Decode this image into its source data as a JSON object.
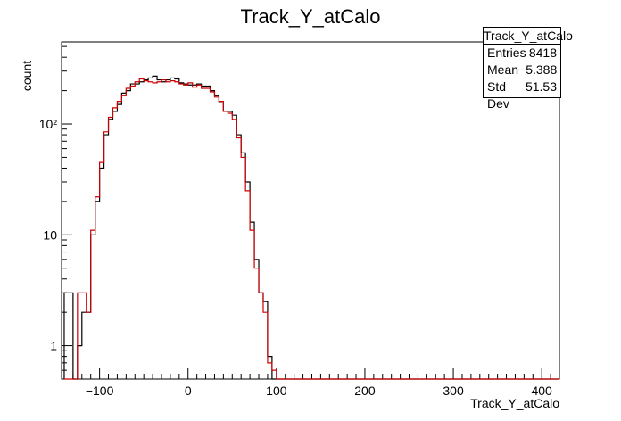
{
  "chart_data": {
    "type": "histogram",
    "title": "Track_Y_atCalo",
    "xlabel": "Track_Y_atCalo",
    "ylabel": "count",
    "log_y": true,
    "xlim": [
      -143,
      420
    ],
    "ylim": [
      0.5,
      550
    ],
    "x_ticks": [
      -100,
      0,
      100,
      200,
      300,
      400
    ],
    "x_tick_labels": [
      "−100",
      "0",
      "100",
      "200",
      "300",
      "400"
    ],
    "y_ticks": [
      1,
      10,
      100
    ],
    "y_tick_labels": [
      "1",
      "10",
      "10²"
    ],
    "bin_start": -140,
    "bin_width": 5,
    "series": [
      {
        "color": "#000000",
        "values": [
          3,
          3,
          0,
          1,
          2,
          2,
          10,
          20,
          40,
          80,
          110,
          130,
          150,
          190,
          200,
          230,
          230,
          240,
          250,
          260,
          270,
          250,
          240,
          250,
          260,
          255,
          235,
          230,
          225,
          225,
          230,
          220,
          220,
          200,
          180,
          155,
          130,
          130,
          120,
          80,
          55,
          30,
          13,
          6,
          3,
          2.5,
          0.8,
          0.5,
          0,
          0,
          0,
          0,
          0,
          0,
          0,
          0,
          0,
          0,
          0,
          0,
          0,
          0,
          0,
          0,
          0,
          0,
          0,
          0,
          0,
          0,
          0,
          0,
          0,
          0,
          0,
          0,
          0,
          0,
          0,
          0,
          0,
          0,
          0,
          0,
          0,
          0,
          0,
          0,
          0,
          0,
          0,
          0,
          0,
          0,
          0,
          0,
          0,
          0,
          0,
          0,
          0,
          0,
          0,
          0,
          0,
          0,
          0,
          0,
          0,
          0,
          0,
          0
        ]
      },
      {
        "color": "#cc0000",
        "values": [
          0,
          0,
          0,
          3,
          3,
          2,
          11,
          22,
          45,
          85,
          115,
          140,
          160,
          180,
          210,
          220,
          240,
          255,
          245,
          240,
          235,
          240,
          250,
          240,
          245,
          240,
          230,
          225,
          235,
          215,
          225,
          210,
          210,
          195,
          175,
          160,
          130,
          125,
          110,
          75,
          50,
          25,
          11,
          5,
          3,
          2,
          0.7,
          0.6,
          0.5,
          0,
          0,
          0,
          0,
          0,
          0,
          0,
          0,
          0,
          0,
          0,
          0,
          0,
          0,
          0,
          0,
          0,
          0,
          0,
          0,
          0,
          0,
          0,
          0,
          0,
          0,
          0,
          0,
          0,
          0,
          0,
          0,
          0,
          0,
          0,
          0,
          0,
          0,
          0,
          0,
          0,
          0,
          0,
          0,
          0,
          0,
          0,
          0,
          0,
          0,
          0,
          0,
          0,
          0,
          0,
          0,
          0,
          0,
          0,
          0,
          0,
          0,
          0,
          0
        ]
      }
    ],
    "stats_box": {
      "title": "Track_Y_atCalo",
      "rows": [
        {
          "label": "Entries",
          "value": "8418"
        },
        {
          "label": "Mean",
          "value": "−5.388"
        },
        {
          "label": "Std Dev",
          "value": "51.53"
        }
      ]
    }
  }
}
